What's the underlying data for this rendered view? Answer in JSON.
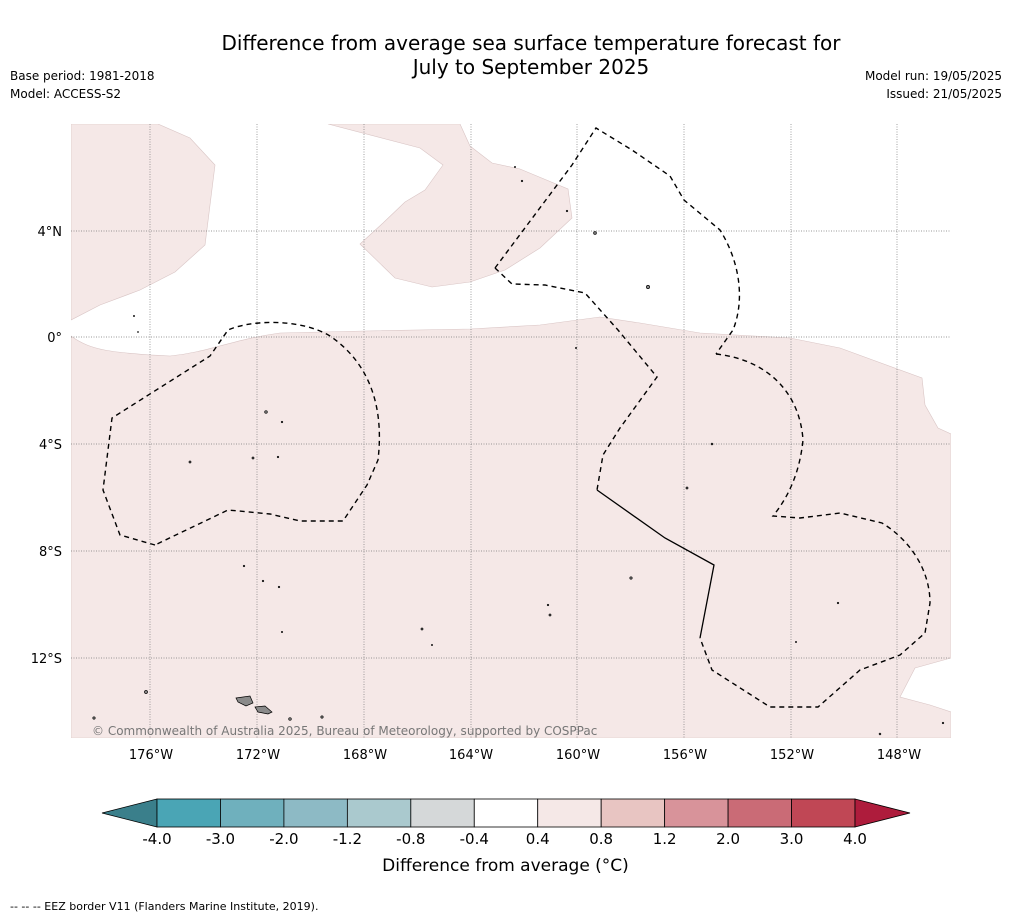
{
  "title": {
    "line1": "Difference from average sea surface temperature forecast for",
    "line2": "July to September 2025"
  },
  "meta_left": {
    "base_period": "Base period: 1981-2018",
    "model": "Model: ACCESS-S2"
  },
  "meta_right": {
    "model_run": "Model run: 19/05/2025",
    "issued": "Issued: 21/05/2025"
  },
  "map": {
    "lat_labels": [
      "4°N",
      "0°",
      "4°S",
      "8°S",
      "12°S"
    ],
    "lon_labels": [
      "176°W",
      "172°W",
      "168°W",
      "164°W",
      "160°W",
      "156°W",
      "152°W",
      "148°W"
    ],
    "copyright": "© Commonwealth of Australia 2025, Bureau of Meteorology, supported by COSPPac",
    "fill_colors": {
      "anomaly_0.4_0.8": "#f5e8e7",
      "anomaly_-0.4_0.4": "#ffffff",
      "land": "#8a8a8a",
      "eez_border": "#000000"
    }
  },
  "colorbar": {
    "title": "Difference from average (°C)",
    "tick_labels": [
      "-4.0",
      "-3.0",
      "-2.0",
      "-1.2",
      "-0.8",
      "-0.4",
      "0.4",
      "0.8",
      "1.2",
      "2.0",
      "3.0",
      "4.0"
    ],
    "colors": [
      "#4aa5b5",
      "#6fb0bd",
      "#8dbac5",
      "#aac9ce",
      "#d5d8d9",
      "#ffffff",
      "#f5e8e7",
      "#e8c5c2",
      "#d8939a",
      "#ca6b76",
      "#c04755"
    ],
    "under_color": "#3a7f8b",
    "over_color": "#ae1c3c"
  },
  "footnote": "--  --  -- EEZ border V11 (Flanders Marine Institute, 2019)."
}
